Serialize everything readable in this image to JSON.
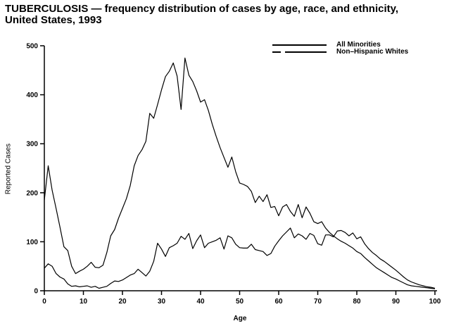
{
  "title": {
    "line1": "TUBERCULOSIS — frequency distribution of cases by age, race, and ethnicity,",
    "line2": "United States, 1993"
  },
  "colors": {
    "foreground": "#000000",
    "background": "#ffffff"
  },
  "chart_data": {
    "type": "line",
    "title": "TUBERCULOSIS — frequency distribution of cases by age, race, and ethnicity, United States, 1993",
    "xlabel": "Age",
    "ylabel": "Reported Cases",
    "xlim": [
      0,
      100
    ],
    "ylim": [
      0,
      500
    ],
    "xticks": [
      0,
      10,
      20,
      30,
      40,
      50,
      60,
      70,
      80,
      90,
      100
    ],
    "yticks": [
      0,
      100,
      200,
      300,
      400,
      500
    ],
    "grid": false,
    "legend_position": "top-right-inside",
    "ages": [
      0,
      1,
      2,
      3,
      4,
      5,
      6,
      7,
      8,
      9,
      10,
      11,
      12,
      13,
      14,
      15,
      16,
      17,
      18,
      19,
      20,
      21,
      22,
      23,
      24,
      25,
      26,
      27,
      28,
      29,
      30,
      31,
      32,
      33,
      34,
      35,
      36,
      37,
      38,
      39,
      40,
      41,
      42,
      43,
      44,
      45,
      46,
      47,
      48,
      49,
      50,
      51,
      52,
      53,
      54,
      55,
      56,
      57,
      58,
      59,
      60,
      61,
      62,
      63,
      64,
      65,
      66,
      67,
      68,
      69,
      70,
      71,
      72,
      73,
      74,
      75,
      76,
      77,
      78,
      79,
      80,
      81,
      82,
      83,
      84,
      85,
      86,
      87,
      88,
      89,
      90,
      91,
      92,
      93,
      94,
      95,
      96,
      97,
      98,
      99,
      100
    ],
    "series": [
      {
        "name": "All Minorities",
        "line_style": "solid",
        "values": [
          185,
          255,
          205,
          168,
          130,
          90,
          82,
          50,
          35,
          40,
          44,
          50,
          58,
          48,
          47,
          52,
          78,
          112,
          125,
          148,
          168,
          188,
          215,
          255,
          276,
          288,
          305,
          362,
          352,
          380,
          410,
          437,
          448,
          465,
          438,
          370,
          475,
          440,
          427,
          408,
          385,
          390,
          368,
          340,
          315,
          292,
          272,
          252,
          273,
          243,
          220,
          217,
          213,
          203,
          180,
          193,
          182,
          196,
          170,
          172,
          153,
          171,
          176,
          162,
          152,
          176,
          149,
          171,
          158,
          141,
          137,
          141,
          128,
          119,
          112,
          106,
          101,
          97,
          92,
          87,
          80,
          76,
          68,
          61,
          54,
          47,
          42,
          37,
          32,
          27,
          24,
          20,
          16,
          12,
          10,
          9,
          8,
          7,
          6,
          5,
          4
        ]
      },
      {
        "name": "Non–Hispanic Whites",
        "line_style": "long-dash",
        "values": [
          46,
          55,
          50,
          35,
          28,
          24,
          14,
          9,
          10,
          8,
          9,
          10,
          7,
          9,
          5,
          7,
          9,
          15,
          20,
          19,
          22,
          27,
          32,
          35,
          44,
          37,
          30,
          40,
          60,
          97,
          85,
          70,
          88,
          92,
          97,
          111,
          105,
          117,
          86,
          102,
          114,
          88,
          97,
          100,
          103,
          108,
          85,
          112,
          108,
          95,
          88,
          87,
          87,
          95,
          84,
          82,
          80,
          72,
          76,
          91,
          102,
          112,
          120,
          128,
          108,
          116,
          112,
          105,
          117,
          113,
          96,
          93,
          114,
          114,
          110,
          122,
          123,
          119,
          112,
          118,
          106,
          110,
          96,
          86,
          78,
          72,
          65,
          60,
          54,
          48,
          42,
          35,
          28,
          22,
          18,
          15,
          12,
          10,
          8,
          7,
          5
        ]
      }
    ]
  }
}
